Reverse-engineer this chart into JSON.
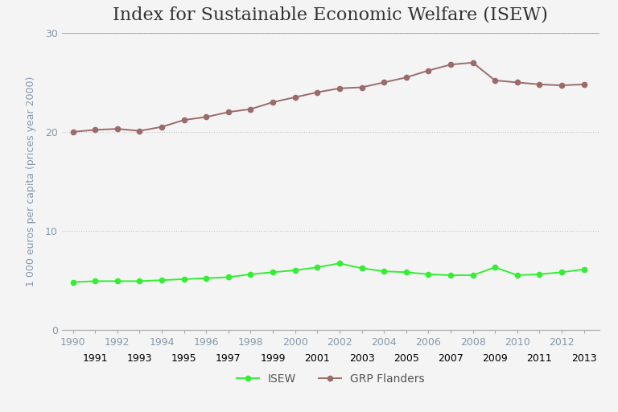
{
  "title": "Index for Sustainable Economic Welfare (ISEW)",
  "ylabel": "1 000 euros per capita (prices year 2000)",
  "years": [
    1990,
    1991,
    1992,
    1993,
    1994,
    1995,
    1996,
    1997,
    1998,
    1999,
    2000,
    2001,
    2002,
    2003,
    2004,
    2005,
    2006,
    2007,
    2008,
    2009,
    2010,
    2011,
    2012,
    2013
  ],
  "isew": [
    4.8,
    4.9,
    4.9,
    4.9,
    5.0,
    5.1,
    5.2,
    5.3,
    5.6,
    5.8,
    6.0,
    6.3,
    6.7,
    6.2,
    5.9,
    5.8,
    5.6,
    5.5,
    5.5,
    6.3,
    5.5,
    5.6,
    5.8,
    6.1
  ],
  "grp": [
    20.0,
    20.2,
    20.3,
    20.1,
    20.5,
    21.2,
    21.5,
    22.0,
    22.3,
    23.0,
    23.5,
    24.0,
    24.4,
    24.5,
    25.0,
    25.5,
    26.2,
    26.8,
    27.0,
    25.2,
    25.0,
    24.8,
    24.7,
    24.8
  ],
  "isew_color": "#33ee33",
  "grp_color": "#9B6B6B",
  "bg_color": "#f4f4f4",
  "plot_bg_color": "#f4f4f4",
  "grid_color": "#c8c8c8",
  "axis_color": "#8899aa",
  "ylim": [
    0,
    30
  ],
  "yticks": [
    0,
    10,
    20,
    30
  ],
  "title_fontsize": 16,
  "axis_fontsize": 9,
  "legend_labels": [
    "ISEW",
    "GRP Flanders"
  ]
}
